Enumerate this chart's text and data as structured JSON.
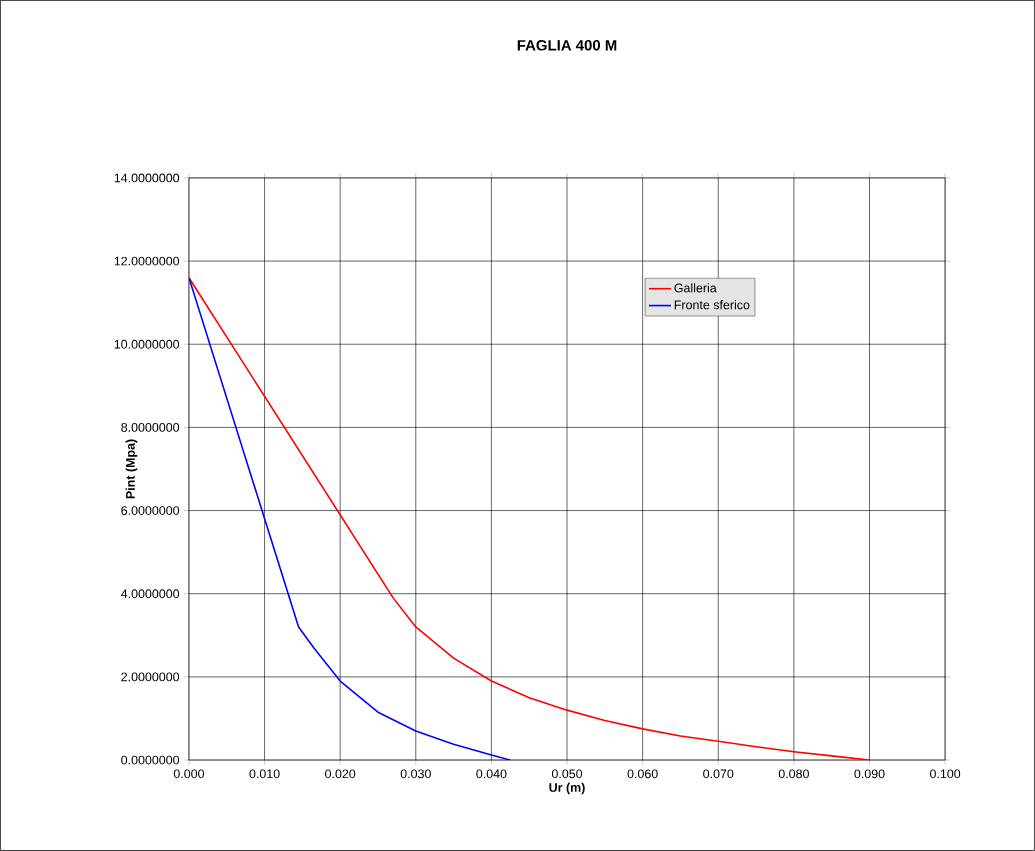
{
  "chart_data": {
    "type": "line",
    "title": "FAGLIA 400 M",
    "xlabel": "Ur (m)",
    "ylabel": "Pint (Mpa)",
    "xlim": [
      0,
      0.1
    ],
    "ylim": [
      0,
      14
    ],
    "xticks": [
      {
        "value": 0,
        "label": "0.000"
      },
      {
        "value": 0.01,
        "label": "0.010"
      },
      {
        "value": 0.02,
        "label": "0.020"
      },
      {
        "value": 0.03,
        "label": "0.030"
      },
      {
        "value": 0.04,
        "label": "0.040"
      },
      {
        "value": 0.05,
        "label": "0.050"
      },
      {
        "value": 0.06,
        "label": "0.060"
      },
      {
        "value": 0.07,
        "label": "0.070"
      },
      {
        "value": 0.08,
        "label": "0.080"
      },
      {
        "value": 0.09,
        "label": "0.090"
      },
      {
        "value": 0.1,
        "label": "0.100"
      }
    ],
    "yticks": [
      {
        "value": 0,
        "label": "0.0000000"
      },
      {
        "value": 2,
        "label": "2.0000000"
      },
      {
        "value": 4,
        "label": "4.0000000"
      },
      {
        "value": 6,
        "label": "6.0000000"
      },
      {
        "value": 8,
        "label": "8.0000000"
      },
      {
        "value": 10,
        "label": "10.0000000"
      },
      {
        "value": 12,
        "label": "12.0000000"
      },
      {
        "value": 14,
        "label": "14.0000000"
      }
    ],
    "grid": true,
    "legend": "top right",
    "line_style": "solid",
    "series": [
      {
        "name": "Galleria",
        "color": "#ff0000",
        "x": [
          0,
          0.027,
          0.03,
          0.035,
          0.04,
          0.045,
          0.05,
          0.055,
          0.06,
          0.065,
          0.07,
          0.075,
          0.08,
          0.085,
          0.09
        ],
        "values": [
          11.6,
          3.9,
          3.2,
          2.45,
          1.9,
          1.5,
          1.2,
          0.95,
          0.75,
          0.58,
          0.45,
          0.32,
          0.2,
          0.1,
          0
        ]
      },
      {
        "name": "Fronte sferico",
        "color": "#0000ff",
        "x": [
          0,
          0.0145,
          0.0165,
          0.02,
          0.025,
          0.03,
          0.035,
          0.04,
          0.0425
        ],
        "values": [
          11.6,
          3.2,
          2.7,
          1.9,
          1.15,
          0.7,
          0.38,
          0.12,
          0
        ]
      }
    ]
  }
}
